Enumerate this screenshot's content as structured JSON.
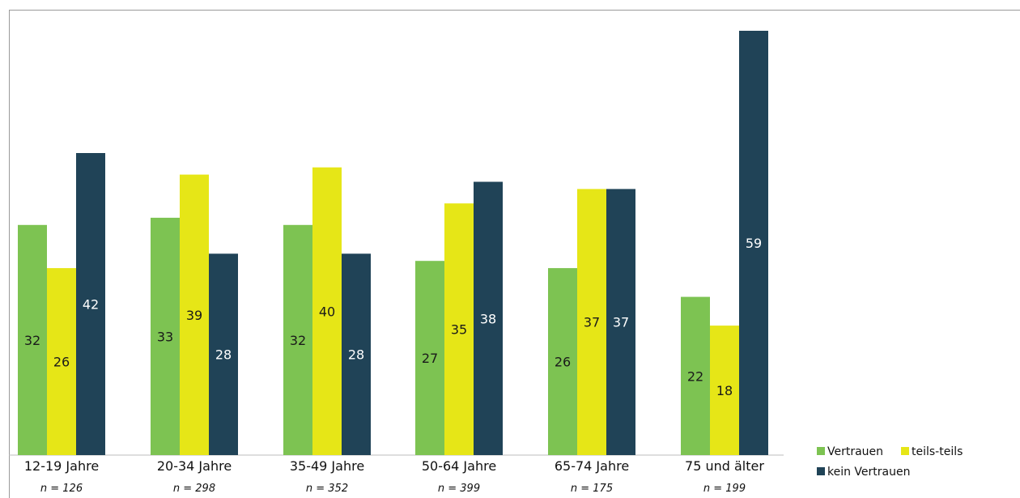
{
  "chart_data": {
    "type": "bar",
    "title": "",
    "xlabel": "",
    "ylabel": "",
    "categories": [
      "12-19 Jahre",
      "20-34 Jahre",
      "35-49 Jahre",
      "50-64 Jahre",
      "65-74 Jahre",
      "75 und älter"
    ],
    "sample_sizes": [
      "n = 126",
      "n = 298",
      "n = 352",
      "n = 399",
      "n = 175",
      "n = 199"
    ],
    "series": [
      {
        "name": "Vertrauen",
        "color": "#7dc352",
        "label_color": "#1a1a1a",
        "values": [
          32,
          33,
          32,
          27,
          26,
          22
        ]
      },
      {
        "name": "teils-teils",
        "color": "#e6e617",
        "label_color": "#1a1a1a",
        "values": [
          26,
          39,
          40,
          35,
          37,
          18
        ]
      },
      {
        "name": "kein Vertrauen",
        "color": "#204357",
        "label_color": "#ffffff",
        "values": [
          42,
          28,
          28,
          38,
          37,
          59
        ]
      }
    ],
    "ylim": [
      0,
      62
    ],
    "grid": false,
    "legend_position": "bottom-right"
  }
}
